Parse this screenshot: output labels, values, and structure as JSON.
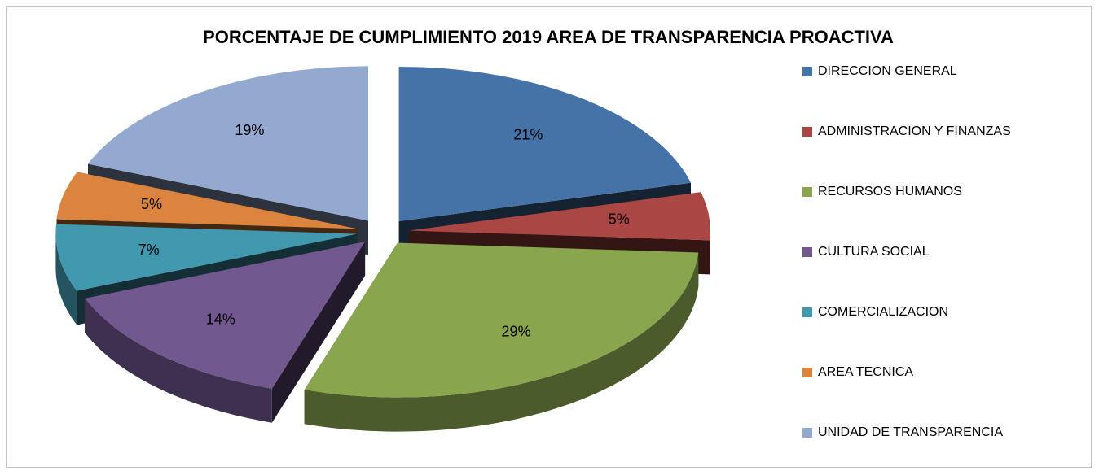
{
  "chart_data": {
    "type": "pie",
    "title": "PORCENTAJE DE CUMPLIMIENTO 2019 AREA DE TRANSPARENCIA PROACTIVA",
    "categories": [
      "DIRECCION GENERAL",
      "ADMINISTRACION Y FINANZAS",
      "RECURSOS HUMANOS",
      "CULTURA SOCIAL",
      "COMERCIALIZACION",
      "AREA TECNICA",
      "UNIDAD DE TRANSPARENCIA"
    ],
    "values": [
      21,
      5,
      29,
      14,
      7,
      5,
      19
    ],
    "value_labels": [
      "21%",
      "5%",
      "29%",
      "14%",
      "7%",
      "5%",
      "19%"
    ],
    "colors": [
      "#4572a7",
      "#aa4643",
      "#89a54e",
      "#71588f",
      "#4198af",
      "#db843d",
      "#93a9cf"
    ],
    "legend": "right"
  }
}
